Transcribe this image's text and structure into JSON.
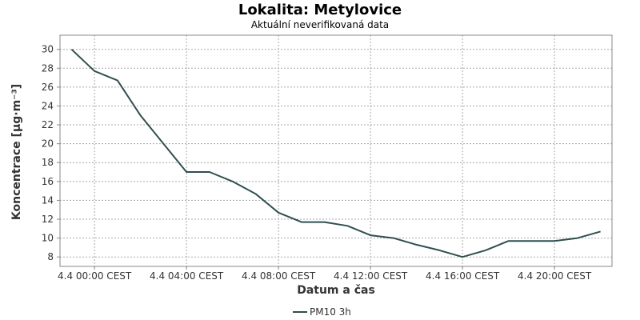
{
  "chart_data": {
    "type": "line",
    "title": "Lokalita: Metylovice",
    "subtitle": "Aktuální neverifikovaná data",
    "xlabel": "Datum a čas",
    "ylabel": "Koncentrace [µg·m⁻³]",
    "x_ticks": [
      "4.4 00:00 CEST",
      "4.4 04:00 CEST",
      "4.4 08:00 CEST",
      "4.4 12:00 CEST",
      "4.4 16:00 CEST",
      "4.4 20:00 CEST"
    ],
    "x_unit": "hours since 4.4 00:00",
    "xlim": [
      -1.5,
      22.5
    ],
    "ylim": [
      7,
      31.5
    ],
    "y_ticks": [
      8,
      10,
      12,
      14,
      16,
      18,
      20,
      22,
      24,
      26,
      28,
      30
    ],
    "grid": true,
    "legend_position": "bottom",
    "colors": {
      "series": "#2f4f4f",
      "plot_background": "#ffffff",
      "plot_border": "#888888"
    },
    "series": [
      {
        "name": "PM10 3h",
        "x": [
          -1,
          0,
          1,
          2,
          3,
          4,
          5,
          6,
          7,
          8,
          9,
          10,
          11,
          12,
          13,
          14,
          15,
          16,
          17,
          18,
          19,
          20,
          21,
          22
        ],
        "values": [
          30.0,
          27.7,
          26.7,
          23.0,
          20.0,
          17.0,
          17.0,
          16.0,
          14.7,
          12.7,
          11.7,
          11.7,
          11.3,
          10.3,
          10.0,
          9.3,
          8.7,
          8.0,
          8.7,
          9.7,
          9.7,
          9.7,
          10.0,
          10.7
        ]
      }
    ]
  }
}
